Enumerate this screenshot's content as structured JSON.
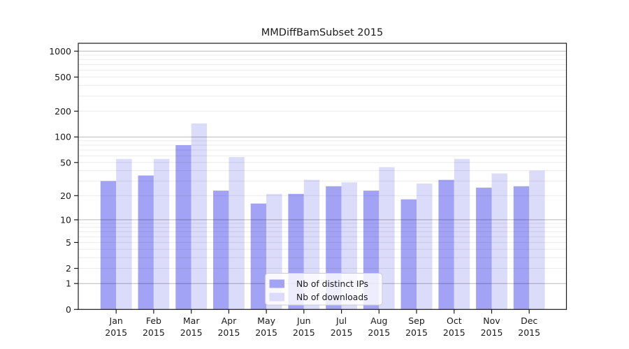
{
  "chart_data": {
    "type": "bar",
    "title": "MMDiffBamSubset 2015",
    "categories": [
      "Jan",
      "Feb",
      "Mar",
      "Apr",
      "May",
      "Jun",
      "Jul",
      "Aug",
      "Sep",
      "Oct",
      "Nov",
      "Dec"
    ],
    "category_year": "2015",
    "series": [
      {
        "name": "Nb of distinct IPs",
        "color": "#a3a3f6",
        "values": [
          30,
          35,
          80,
          23,
          16,
          21,
          26,
          23,
          18,
          31,
          25,
          26
        ]
      },
      {
        "name": "Nb of downloads",
        "color": "#dbdbfa",
        "values": [
          55,
          55,
          144,
          58,
          21,
          31,
          29,
          44,
          28,
          55,
          37,
          40
        ]
      }
    ],
    "yscale": "log10(value+1)",
    "yticks": [
      0,
      1,
      2,
      5,
      10,
      20,
      50,
      100,
      200,
      500,
      1000
    ],
    "ylim": [
      0,
      1000
    ],
    "grid": true,
    "legend_position": "bottom-center-inside",
    "background_color": "#ffffff"
  }
}
